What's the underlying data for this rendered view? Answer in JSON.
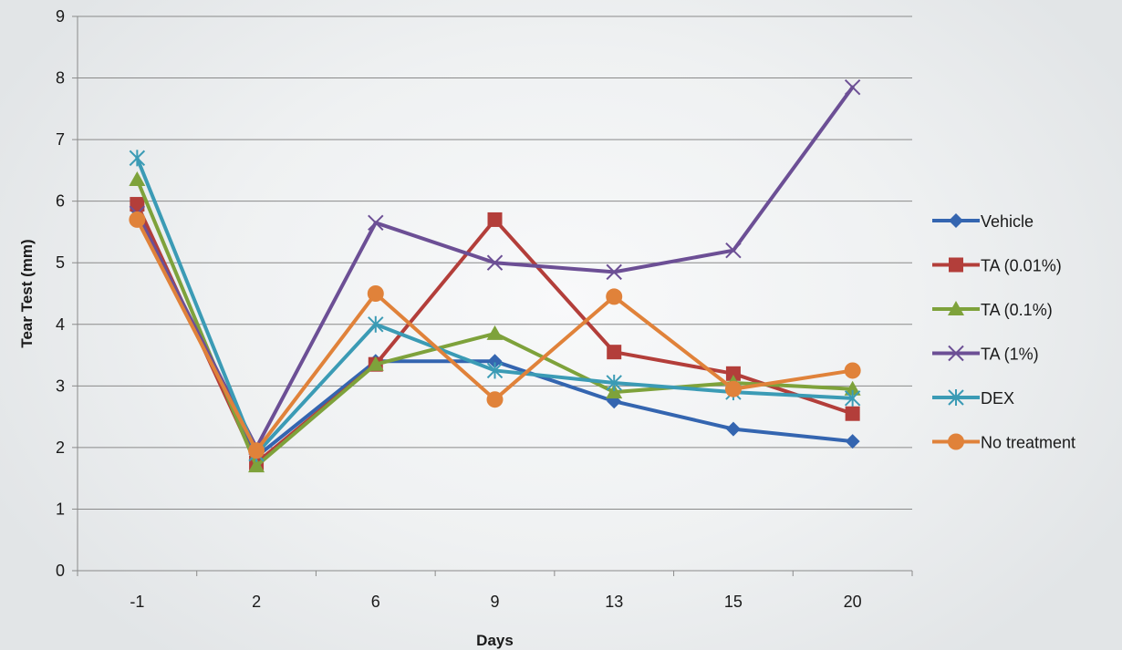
{
  "chart_data": {
    "type": "line",
    "title": "",
    "xlabel": "Days",
    "ylabel": "Tear Test (mm)",
    "categories": [
      "-1",
      "2",
      "6",
      "9",
      "13",
      "15",
      "20"
    ],
    "ylim": [
      0,
      9
    ],
    "yticks": [
      "0",
      "1",
      "2",
      "3",
      "4",
      "5",
      "6",
      "7",
      "8",
      "9"
    ],
    "grid": "horizontal",
    "legend_position": "right",
    "series": [
      {
        "name": "Vehicle",
        "color": "#3465b0",
        "marker": "diamond",
        "values": [
          5.85,
          1.85,
          3.4,
          3.4,
          2.75,
          2.3,
          2.1
        ]
      },
      {
        "name": "TA (0.01%)",
        "color": "#b33e3a",
        "marker": "square",
        "values": [
          5.95,
          1.75,
          3.35,
          5.7,
          3.55,
          3.2,
          2.55
        ]
      },
      {
        "name": "TA (0.1%)",
        "color": "#7ea23b",
        "marker": "triangle",
        "values": [
          6.35,
          1.7,
          3.35,
          3.85,
          2.9,
          3.05,
          2.95
        ]
      },
      {
        "name": "TA (1%)",
        "color": "#6c4f95",
        "marker": "x",
        "values": [
          5.8,
          2.0,
          5.65,
          5.0,
          4.85,
          5.2,
          7.85
        ]
      },
      {
        "name": "DEX",
        "color": "#3b9bb5",
        "marker": "star",
        "values": [
          6.7,
          1.9,
          4.0,
          3.25,
          3.05,
          2.9,
          2.8
        ]
      },
      {
        "name": "No treatment",
        "color": "#e0823a",
        "marker": "circle",
        "values": [
          5.7,
          1.95,
          4.5,
          2.78,
          4.45,
          2.95,
          3.25
        ]
      }
    ]
  }
}
